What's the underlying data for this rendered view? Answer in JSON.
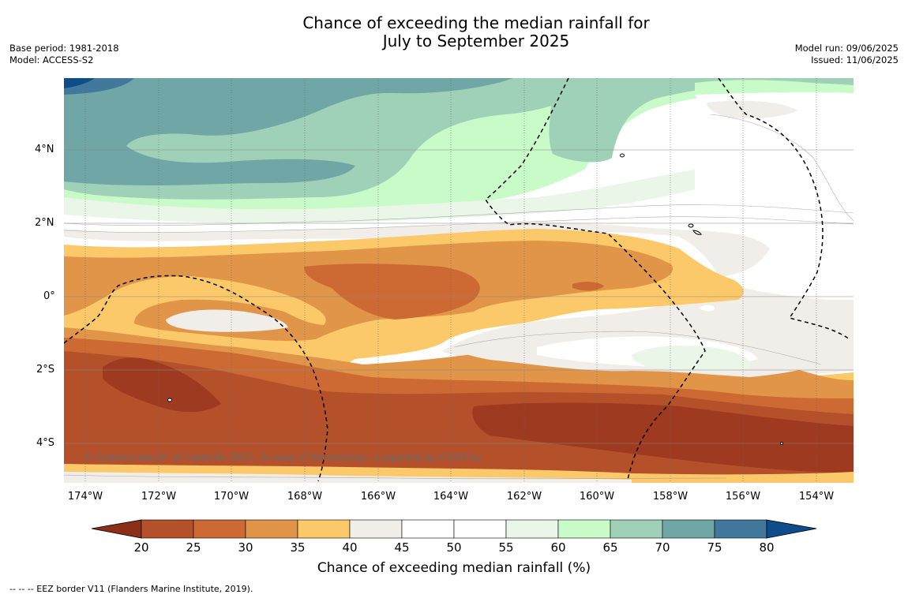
{
  "title": {
    "line1": "Chance of exceeding the median rainfall for",
    "line2": "July to September 2025"
  },
  "meta_left": {
    "base_period": "Base period: 1981-2018",
    "model": "Model: ACCESS-S2"
  },
  "meta_right": {
    "model_run": "Model run: 09/06/2025",
    "issued": "Issued: 11/06/2025"
  },
  "map": {
    "lat_labels": [
      "4°N",
      "2°N",
      "0°",
      "2°S",
      "4°S"
    ],
    "lon_labels": [
      "174°W",
      "172°W",
      "170°W",
      "168°W",
      "166°W",
      "164°W",
      "162°W",
      "160°W",
      "158°W",
      "156°W",
      "154°W"
    ],
    "copyright": "© Commonwealth of Australia 2025, Bureau of Meteorology, supported by COSPPac",
    "eez_border": "dashed"
  },
  "colorbar": {
    "ticks": [
      "20",
      "25",
      "30",
      "35",
      "40",
      "45",
      "50",
      "55",
      "60",
      "65",
      "70",
      "75",
      "80"
    ],
    "colors": [
      "#9e3a1f",
      "#b5512a",
      "#cd6a33",
      "#e19548",
      "#fcc96a",
      "#f1ede8",
      "#ffffff",
      "#ffffff",
      "#e9f6e8",
      "#c9fbc8",
      "#9ed1b8",
      "#70a6a5",
      "#41789b",
      "#0f4c8a"
    ],
    "title": "Chance of exceeding median rainfall (%)"
  },
  "footnote": "--  --  -- EEZ border V11 (Flanders Marine Institute, 2019)."
}
